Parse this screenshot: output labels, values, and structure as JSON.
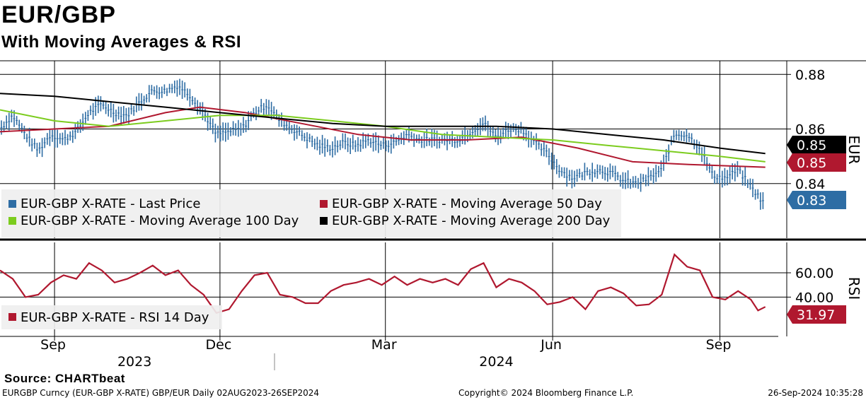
{
  "header": {
    "title": "EUR/GBP",
    "subtitle": "With Moving Averages & RSI"
  },
  "source": "Source: CHARTbeat",
  "footer": {
    "left": "EURGBP Curncy (EUR-GBP X-RATE) GBP/EUR  Daily 02AUG2023-26SEP2024",
    "center": "Copyright© 2024 Bloomberg Finance L.P.",
    "right": "26-Sep-2024 10:35:28"
  },
  "colors": {
    "price": "#2e6da4",
    "ma50": "#b0182f",
    "ma100": "#7ccc1e",
    "ma200": "#000000",
    "rsi": "#b0182f"
  },
  "chart_data": [
    {
      "type": "line",
      "panel": "price",
      "y_axis_title": "EUR",
      "ylim": [
        0.82,
        0.885
      ],
      "yticks": [
        {
          "value": 0.88,
          "label": "0.88"
        },
        {
          "value": 0.86,
          "label": "0.86"
        },
        {
          "value": 0.84,
          "label": "0.84"
        }
      ],
      "grid": true,
      "legend_position": "bottom-left",
      "x_months": [
        {
          "label": "Sep",
          "date": "2023-09-01"
        },
        {
          "label": "Dec",
          "date": "2023-12-01"
        },
        {
          "label": "Mar",
          "date": "2024-03-01"
        },
        {
          "label": "Jun",
          "date": "2024-06-01"
        },
        {
          "label": "Sep",
          "date": "2024-09-01"
        }
      ],
      "x_years": [
        {
          "label": "2023",
          "date": "2023-10-15"
        },
        {
          "label": "2024",
          "date": "2024-05-01"
        }
      ],
      "x_range": [
        "2023-08-02",
        "2024-09-30"
      ],
      "series": [
        {
          "name": "EUR-GBP X-RATE - Last Price",
          "color_key": "price",
          "last_label": "0.83",
          "points": [
            [
              "2023-08-02",
              0.86
            ],
            [
              "2023-08-09",
              0.865
            ],
            [
              "2023-08-16",
              0.858
            ],
            [
              "2023-08-23",
              0.852
            ],
            [
              "2023-08-30",
              0.858
            ],
            [
              "2023-09-06",
              0.856
            ],
            [
              "2023-09-13",
              0.859
            ],
            [
              "2023-09-20",
              0.866
            ],
            [
              "2023-09-27",
              0.869
            ],
            [
              "2023-10-04",
              0.866
            ],
            [
              "2023-10-11",
              0.865
            ],
            [
              "2023-10-18",
              0.87
            ],
            [
              "2023-10-25",
              0.874
            ],
            [
              "2023-11-01",
              0.874
            ],
            [
              "2023-11-08",
              0.876
            ],
            [
              "2023-11-15",
              0.872
            ],
            [
              "2023-11-22",
              0.866
            ],
            [
              "2023-11-29",
              0.858
            ],
            [
              "2023-12-06",
              0.859
            ],
            [
              "2023-12-13",
              0.86
            ],
            [
              "2023-12-20",
              0.866
            ],
            [
              "2023-12-27",
              0.869
            ],
            [
              "2024-01-03",
              0.863
            ],
            [
              "2024-01-10",
              0.86
            ],
            [
              "2024-01-17",
              0.857
            ],
            [
              "2024-01-24",
              0.854
            ],
            [
              "2024-01-31",
              0.853
            ],
            [
              "2024-02-07",
              0.855
            ],
            [
              "2024-02-14",
              0.854
            ],
            [
              "2024-02-21",
              0.856
            ],
            [
              "2024-02-28",
              0.854
            ],
            [
              "2024-03-06",
              0.855
            ],
            [
              "2024-03-13",
              0.858
            ],
            [
              "2024-03-20",
              0.856
            ],
            [
              "2024-03-27",
              0.856
            ],
            [
              "2024-04-03",
              0.856
            ],
            [
              "2024-04-10",
              0.856
            ],
            [
              "2024-04-17",
              0.859
            ],
            [
              "2024-04-24",
              0.862
            ],
            [
              "2024-05-01",
              0.857
            ],
            [
              "2024-05-08",
              0.86
            ],
            [
              "2024-05-15",
              0.86
            ],
            [
              "2024-05-22",
              0.855
            ],
            [
              "2024-05-29",
              0.851
            ],
            [
              "2024-06-05",
              0.845
            ],
            [
              "2024-06-12",
              0.842
            ],
            [
              "2024-06-19",
              0.844
            ],
            [
              "2024-06-26",
              0.845
            ],
            [
              "2024-07-03",
              0.844
            ],
            [
              "2024-07-10",
              0.841
            ],
            [
              "2024-07-17",
              0.84
            ],
            [
              "2024-07-24",
              0.842
            ],
            [
              "2024-07-31",
              0.845
            ],
            [
              "2024-08-07",
              0.858
            ],
            [
              "2024-08-14",
              0.858
            ],
            [
              "2024-08-21",
              0.853
            ],
            [
              "2024-08-28",
              0.843
            ],
            [
              "2024-09-04",
              0.842
            ],
            [
              "2024-09-11",
              0.845
            ],
            [
              "2024-09-18",
              0.839
            ],
            [
              "2024-09-26",
              0.832
            ]
          ]
        },
        {
          "name": "EUR-GBP X-RATE - Moving Average 50 Day",
          "color_key": "ma50",
          "last_label": "0.85",
          "points": [
            [
              "2023-08-02",
              0.859
            ],
            [
              "2023-09-01",
              0.86
            ],
            [
              "2023-10-01",
              0.861
            ],
            [
              "2023-11-01",
              0.866
            ],
            [
              "2023-11-20",
              0.868
            ],
            [
              "2023-12-15",
              0.866
            ],
            [
              "2024-01-15",
              0.862
            ],
            [
              "2024-02-15",
              0.858
            ],
            [
              "2024-03-15",
              0.856
            ],
            [
              "2024-04-15",
              0.856
            ],
            [
              "2024-05-15",
              0.857
            ],
            [
              "2024-06-15",
              0.853
            ],
            [
              "2024-07-15",
              0.848
            ],
            [
              "2024-08-15",
              0.847
            ],
            [
              "2024-09-26",
              0.846
            ]
          ]
        },
        {
          "name": "EUR-GBP X-RATE - Moving Average 100 Day",
          "color_key": "ma100",
          "last_label": "",
          "points": [
            [
              "2023-08-02",
              0.867
            ],
            [
              "2023-09-01",
              0.863
            ],
            [
              "2023-10-01",
              0.861
            ],
            [
              "2023-11-01",
              0.863
            ],
            [
              "2023-12-01",
              0.865
            ],
            [
              "2024-01-01",
              0.865
            ],
            [
              "2024-02-01",
              0.863
            ],
            [
              "2024-03-01",
              0.861
            ],
            [
              "2024-04-01",
              0.858
            ],
            [
              "2024-05-01",
              0.857
            ],
            [
              "2024-06-01",
              0.856
            ],
            [
              "2024-07-01",
              0.854
            ],
            [
              "2024-08-01",
              0.852
            ],
            [
              "2024-09-01",
              0.85
            ],
            [
              "2024-09-26",
              0.848
            ]
          ]
        },
        {
          "name": "EUR-GBP X-RATE - Moving Average 200 Day",
          "color_key": "ma200",
          "last_label": "0.85",
          "points": [
            [
              "2023-08-02",
              0.873
            ],
            [
              "2023-09-01",
              0.872
            ],
            [
              "2023-10-01",
              0.87
            ],
            [
              "2023-11-01",
              0.868
            ],
            [
              "2023-12-01",
              0.866
            ],
            [
              "2024-01-01",
              0.864
            ],
            [
              "2024-02-01",
              0.862
            ],
            [
              "2024-03-01",
              0.861
            ],
            [
              "2024-04-01",
              0.861
            ],
            [
              "2024-05-01",
              0.861
            ],
            [
              "2024-06-01",
              0.86
            ],
            [
              "2024-07-01",
              0.858
            ],
            [
              "2024-08-01",
              0.856
            ],
            [
              "2024-09-01",
              0.853
            ],
            [
              "2024-09-26",
              0.851
            ]
          ]
        }
      ]
    },
    {
      "type": "line",
      "panel": "rsi",
      "y_axis_title": "RSI",
      "ylim": [
        10,
        85
      ],
      "yticks": [
        {
          "value": 60,
          "label": "60.00"
        },
        {
          "value": 40,
          "label": "40.00"
        }
      ],
      "grid": true,
      "legend_position": "bottom-left",
      "series": [
        {
          "name": "EUR-GBP X-RATE - RSI 14 Day",
          "color_key": "rsi",
          "last_label": "31.97",
          "points": [
            [
              "2023-08-02",
              62
            ],
            [
              "2023-08-09",
              55
            ],
            [
              "2023-08-16",
              40
            ],
            [
              "2023-08-23",
              42
            ],
            [
              "2023-08-30",
              52
            ],
            [
              "2023-09-06",
              58
            ],
            [
              "2023-09-13",
              55
            ],
            [
              "2023-09-20",
              68
            ],
            [
              "2023-09-27",
              62
            ],
            [
              "2023-10-04",
              52
            ],
            [
              "2023-10-11",
              55
            ],
            [
              "2023-10-18",
              60
            ],
            [
              "2023-10-25",
              66
            ],
            [
              "2023-11-01",
              58
            ],
            [
              "2023-11-08",
              62
            ],
            [
              "2023-11-15",
              50
            ],
            [
              "2023-11-22",
              42
            ],
            [
              "2023-11-29",
              27
            ],
            [
              "2023-12-06",
              30
            ],
            [
              "2023-12-13",
              45
            ],
            [
              "2023-12-20",
              58
            ],
            [
              "2023-12-27",
              60
            ],
            [
              "2024-01-03",
              42
            ],
            [
              "2024-01-10",
              40
            ],
            [
              "2024-01-17",
              35
            ],
            [
              "2024-01-24",
              35
            ],
            [
              "2024-01-31",
              45
            ],
            [
              "2024-02-07",
              50
            ],
            [
              "2024-02-14",
              52
            ],
            [
              "2024-02-21",
              55
            ],
            [
              "2024-02-28",
              50
            ],
            [
              "2024-03-06",
              57
            ],
            [
              "2024-03-13",
              50
            ],
            [
              "2024-03-20",
              55
            ],
            [
              "2024-03-27",
              52
            ],
            [
              "2024-04-03",
              55
            ],
            [
              "2024-04-10",
              50
            ],
            [
              "2024-04-17",
              63
            ],
            [
              "2024-04-24",
              68
            ],
            [
              "2024-05-01",
              48
            ],
            [
              "2024-05-08",
              55
            ],
            [
              "2024-05-15",
              52
            ],
            [
              "2024-05-22",
              45
            ],
            [
              "2024-05-29",
              34
            ],
            [
              "2024-06-05",
              36
            ],
            [
              "2024-06-12",
              40
            ],
            [
              "2024-06-19",
              30
            ],
            [
              "2024-06-26",
              45
            ],
            [
              "2024-07-03",
              48
            ],
            [
              "2024-07-10",
              43
            ],
            [
              "2024-07-17",
              33
            ],
            [
              "2024-07-24",
              34
            ],
            [
              "2024-07-31",
              42
            ],
            [
              "2024-08-07",
              75
            ],
            [
              "2024-08-14",
              65
            ],
            [
              "2024-08-21",
              62
            ],
            [
              "2024-08-28",
              40
            ],
            [
              "2024-09-04",
              38
            ],
            [
              "2024-09-11",
              45
            ],
            [
              "2024-09-18",
              38
            ],
            [
              "2024-09-22",
              29
            ],
            [
              "2024-09-26",
              32
            ]
          ]
        }
      ]
    }
  ]
}
